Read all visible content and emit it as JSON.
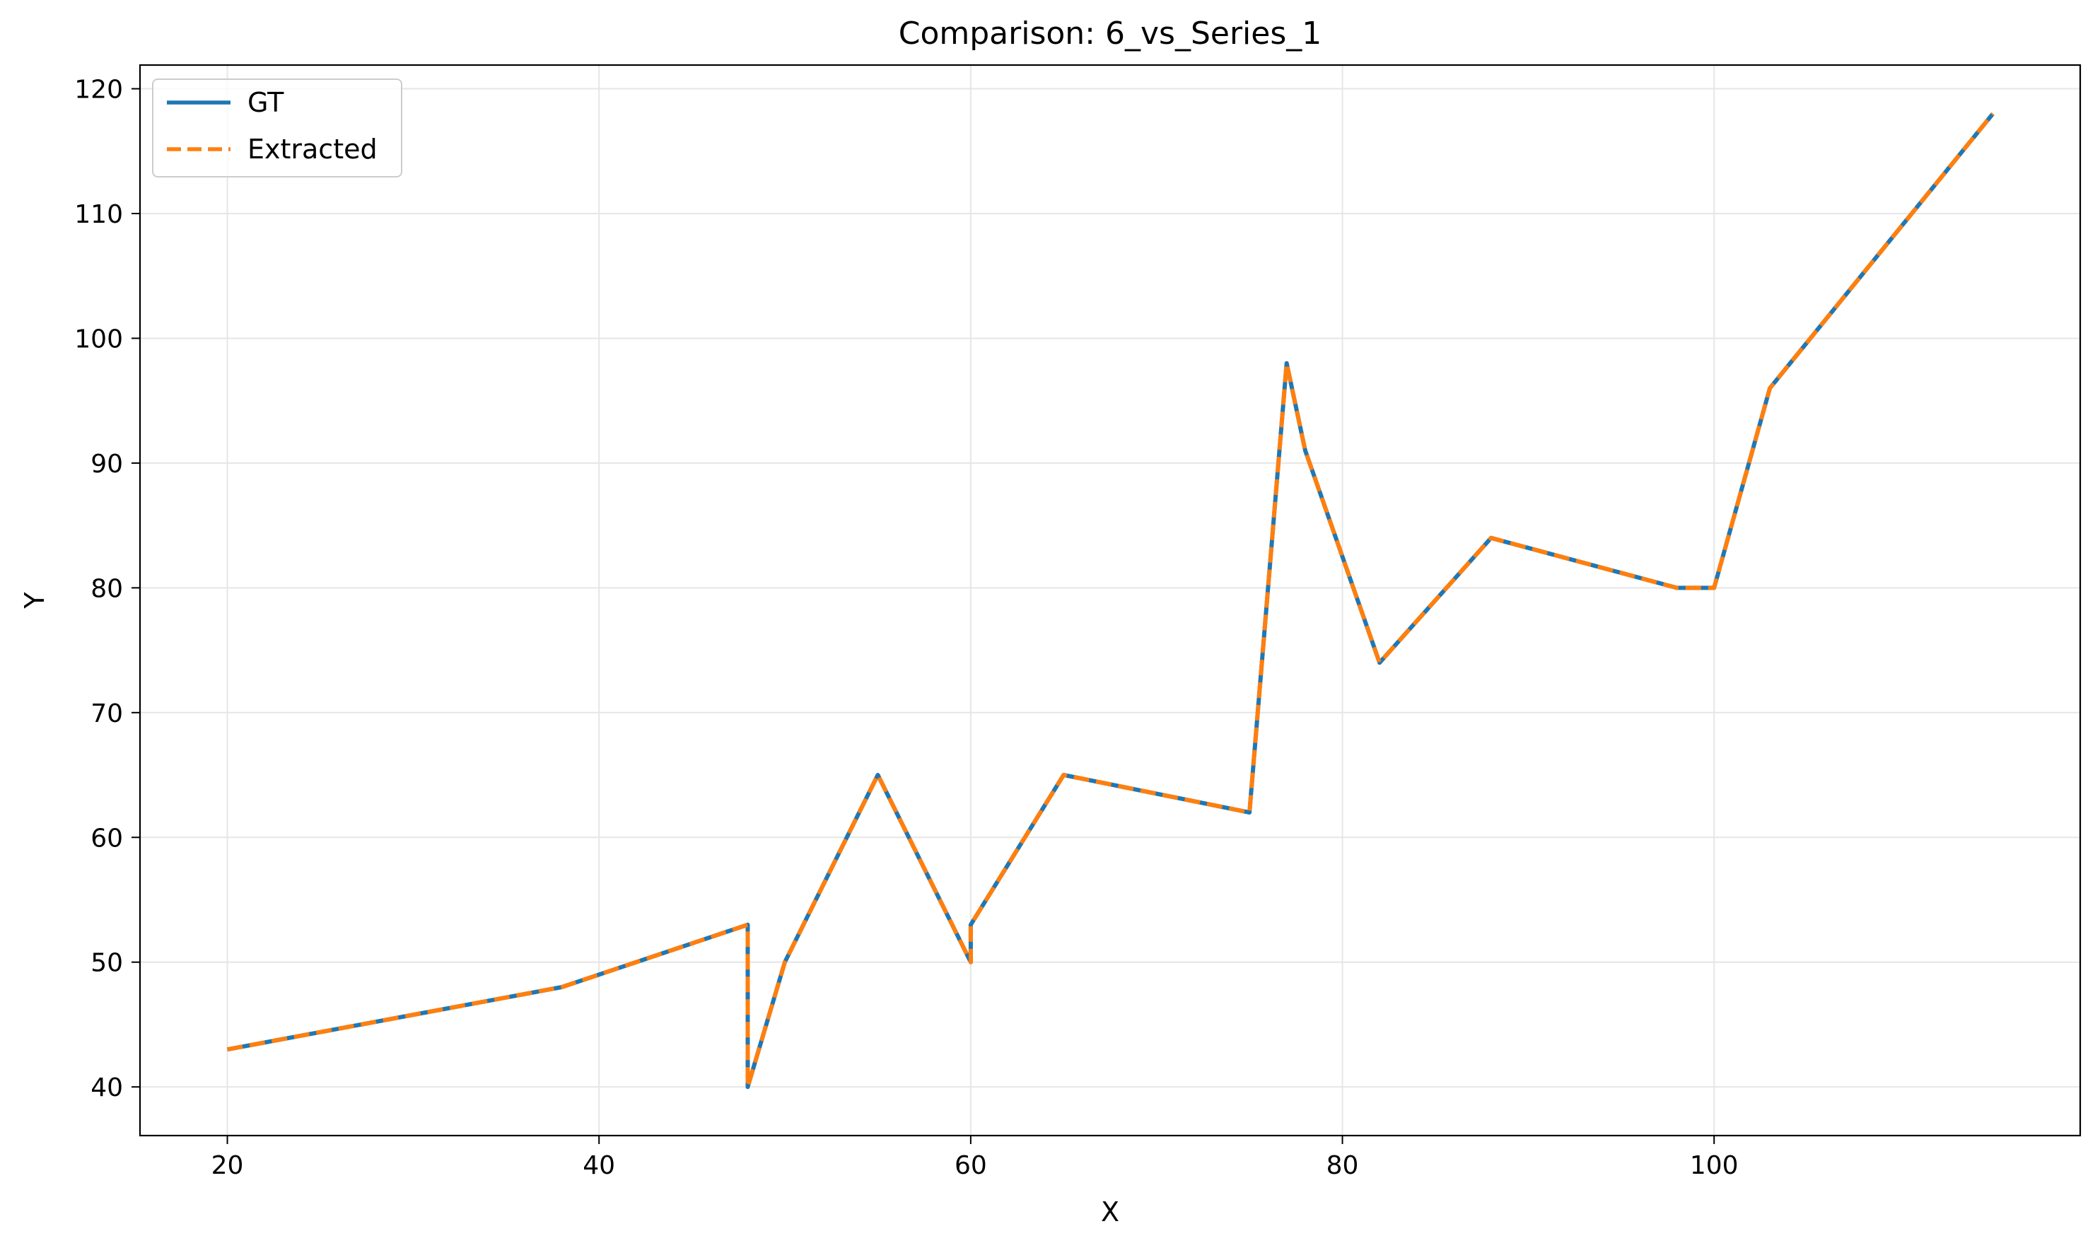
{
  "chart_data": {
    "type": "line",
    "title": "Comparison: 6_vs_Series_1",
    "xlabel": "X",
    "ylabel": "Y",
    "xlim": [
      15.3,
      119.7
    ],
    "ylim": [
      36.1,
      121.9
    ],
    "xticks": [
      20,
      40,
      60,
      80,
      100
    ],
    "yticks": [
      40,
      50,
      60,
      70,
      80,
      90,
      100,
      110,
      120
    ],
    "grid": true,
    "legend_position": "upper-left",
    "series": [
      {
        "name": "GT",
        "color": "#1f77b4",
        "style": "solid",
        "x": [
          20,
          38,
          48,
          48,
          50,
          55,
          60,
          60,
          65,
          75,
          77,
          78,
          82,
          88,
          98,
          100,
          103,
          115
        ],
        "y": [
          43,
          48,
          53,
          40,
          50,
          65,
          50,
          53,
          65,
          62,
          98,
          91,
          74,
          84,
          80,
          80,
          96,
          118
        ]
      },
      {
        "name": "Extracted",
        "color": "#ff7f0e",
        "style": "dashed",
        "x": [
          20,
          38,
          48,
          48,
          50,
          55,
          60,
          60,
          65,
          75,
          77,
          78,
          82,
          88,
          98,
          100,
          103,
          115
        ],
        "y": [
          43,
          48,
          53,
          40,
          50,
          65,
          50,
          53,
          65,
          62,
          98,
          91,
          74,
          84,
          80,
          80,
          96,
          118
        ]
      }
    ]
  }
}
